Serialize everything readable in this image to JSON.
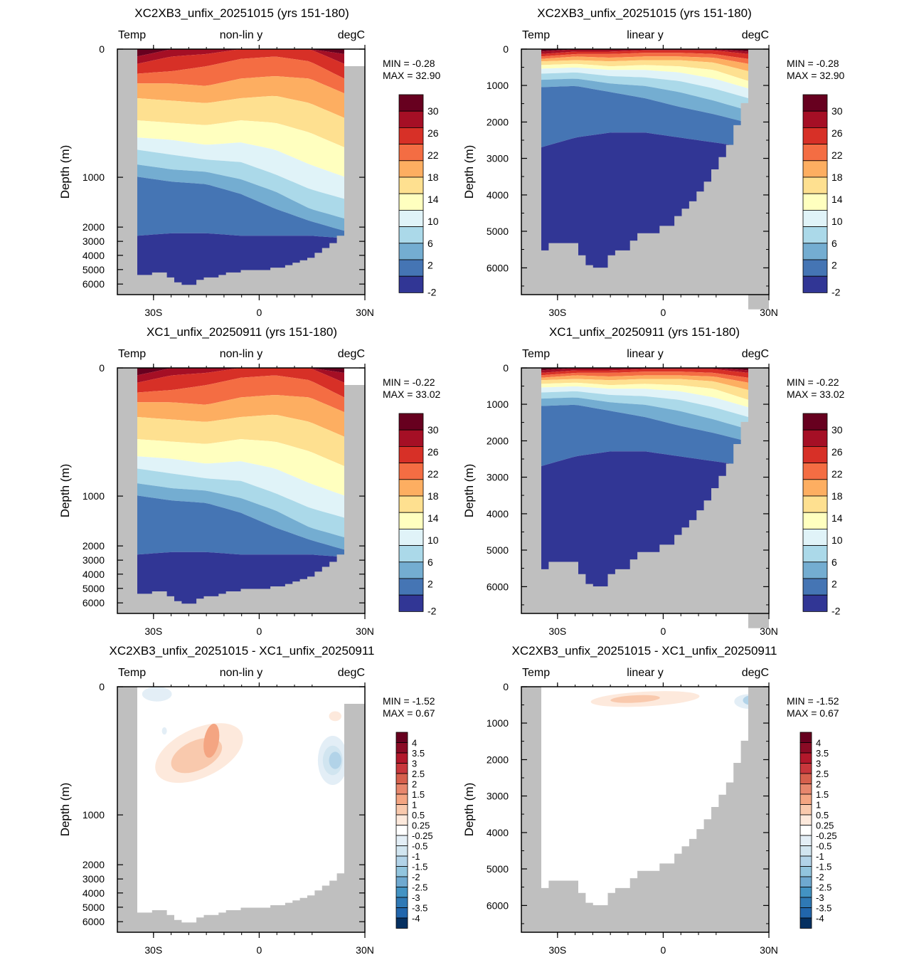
{
  "chart_data": [
    {
      "type": "heatmap",
      "title": "XC2XB3_unfix_20251015 (yrs 151-180)",
      "left_label": "Temp",
      "center_label": "non-lin y",
      "right_label": "degC",
      "ylabel": "Depth (m)",
      "x_tick_labels": [
        "30S",
        "0",
        "30N"
      ],
      "y_scale": "non-linear",
      "y_tick_labels": [
        "0",
        "1000",
        "2000",
        "3000",
        "4000",
        "5000",
        "6000"
      ],
      "min_text": "MIN = -0.28",
      "max_text": "MAX = 32.90",
      "colorbar_labels": [
        "30",
        "26",
        "22",
        "18",
        "14",
        "10",
        "6",
        "2",
        "-2"
      ],
      "colorbar_colors": [
        "#67001f",
        "#a50f25",
        "#d73027",
        "#f46d43",
        "#fdae61",
        "#fee090",
        "#ffffbf",
        "#e0f3f8",
        "#abd9e9",
        "#74add1",
        "#4575b4",
        "#313695"
      ],
      "land_color": "#bfbfbf"
    },
    {
      "type": "heatmap",
      "title": "XC2XB3_unfix_20251015 (yrs 151-180)",
      "left_label": "Temp",
      "center_label": "linear y",
      "right_label": "degC",
      "ylabel": "Depth (m)",
      "x_tick_labels": [
        "30S",
        "0",
        "30N"
      ],
      "y_scale": "linear",
      "y_tick_labels": [
        "0",
        "1000",
        "2000",
        "3000",
        "4000",
        "5000",
        "6000"
      ],
      "min_text": "MIN =  -0.28",
      "max_text": "MAX =  32.90",
      "colorbar_labels": [
        "30",
        "26",
        "22",
        "18",
        "14",
        "10",
        "6",
        "2",
        "-2"
      ]
    },
    {
      "type": "heatmap",
      "title": "XC1_unfix_20250911 (yrs 151-180)",
      "left_label": "Temp",
      "center_label": "non-lin y",
      "right_label": "degC",
      "ylabel": "Depth (m)",
      "x_tick_labels": [
        "30S",
        "0",
        "30N"
      ],
      "y_scale": "non-linear",
      "y_tick_labels": [
        "0",
        "1000",
        "2000",
        "3000",
        "4000",
        "5000",
        "6000"
      ],
      "min_text": "MIN =  -0.22",
      "max_text": "MAX =  33.02",
      "colorbar_labels": [
        "30",
        "26",
        "22",
        "18",
        "14",
        "10",
        "6",
        "2",
        "-2"
      ]
    },
    {
      "type": "heatmap",
      "title": "XC1_unfix_20250911 (yrs 151-180)",
      "left_label": "Temp",
      "center_label": "linear y",
      "right_label": "degC",
      "ylabel": "Depth (m)",
      "x_tick_labels": [
        "30S",
        "0",
        "30N"
      ],
      "y_scale": "linear",
      "y_tick_labels": [
        "0",
        "1000",
        "2000",
        "3000",
        "4000",
        "5000",
        "6000"
      ],
      "min_text": "MIN =  -0.22",
      "max_text": "MAX =  33.02",
      "colorbar_labels": [
        "30",
        "26",
        "22",
        "18",
        "14",
        "10",
        "6",
        "2",
        "-2"
      ]
    },
    {
      "type": "heatmap",
      "title": "XC2XB3_unfix_20251015 - XC1_unfix_20250911",
      "left_label": "Temp",
      "center_label": "non-lin y",
      "right_label": "degC",
      "ylabel": "Depth (m)",
      "x_tick_labels": [
        "30S",
        "0",
        "30N"
      ],
      "y_scale": "non-linear",
      "y_tick_labels": [
        "0",
        "1000",
        "2000",
        "3000",
        "4000",
        "5000",
        "6000"
      ],
      "min_text": "MIN =  -1.52",
      "max_text": "MAX =   0.67",
      "colorbar_labels": [
        "4",
        "3.5",
        "3",
        "2.5",
        "2",
        "1.5",
        "1",
        "0.5",
        "0.25",
        "-0.25",
        "-0.5",
        "-1",
        "-1.5",
        "-2",
        "-2.5",
        "-3",
        "-3.5",
        "-4"
      ],
      "colorbar_colors": [
        "#67001f",
        "#8a0b25",
        "#b2182b",
        "#c8373c",
        "#d6604d",
        "#e7876d",
        "#f4a582",
        "#f9c9ad",
        "#fde9dc",
        "#ffffff",
        "#e3eef6",
        "#d1e5f0",
        "#b2d3e8",
        "#92c5de",
        "#6fa9d0",
        "#4393c3",
        "#2f79b5",
        "#2166ac",
        "#053061"
      ]
    },
    {
      "type": "heatmap",
      "title": "XC2XB3_unfix_20251015 - XC1_unfix_20250911",
      "left_label": "Temp",
      "center_label": "linear y",
      "right_label": "degC",
      "ylabel": "Depth (m)",
      "x_tick_labels": [
        "30S",
        "0",
        "30N"
      ],
      "y_scale": "linear",
      "y_tick_labels": [
        "0",
        "1000",
        "2000",
        "3000",
        "4000",
        "5000",
        "6000"
      ],
      "min_text": "MIN =  -1.52",
      "max_text": "MAX =   0.67",
      "colorbar_labels": [
        "4",
        "3.5",
        "3",
        "2.5",
        "2",
        "1.5",
        "1",
        "0.5",
        "0.25",
        "-0.25",
        "-0.5",
        "-1",
        "-1.5",
        "-2",
        "-2.5",
        "-3",
        "-3.5",
        "-4"
      ]
    }
  ]
}
